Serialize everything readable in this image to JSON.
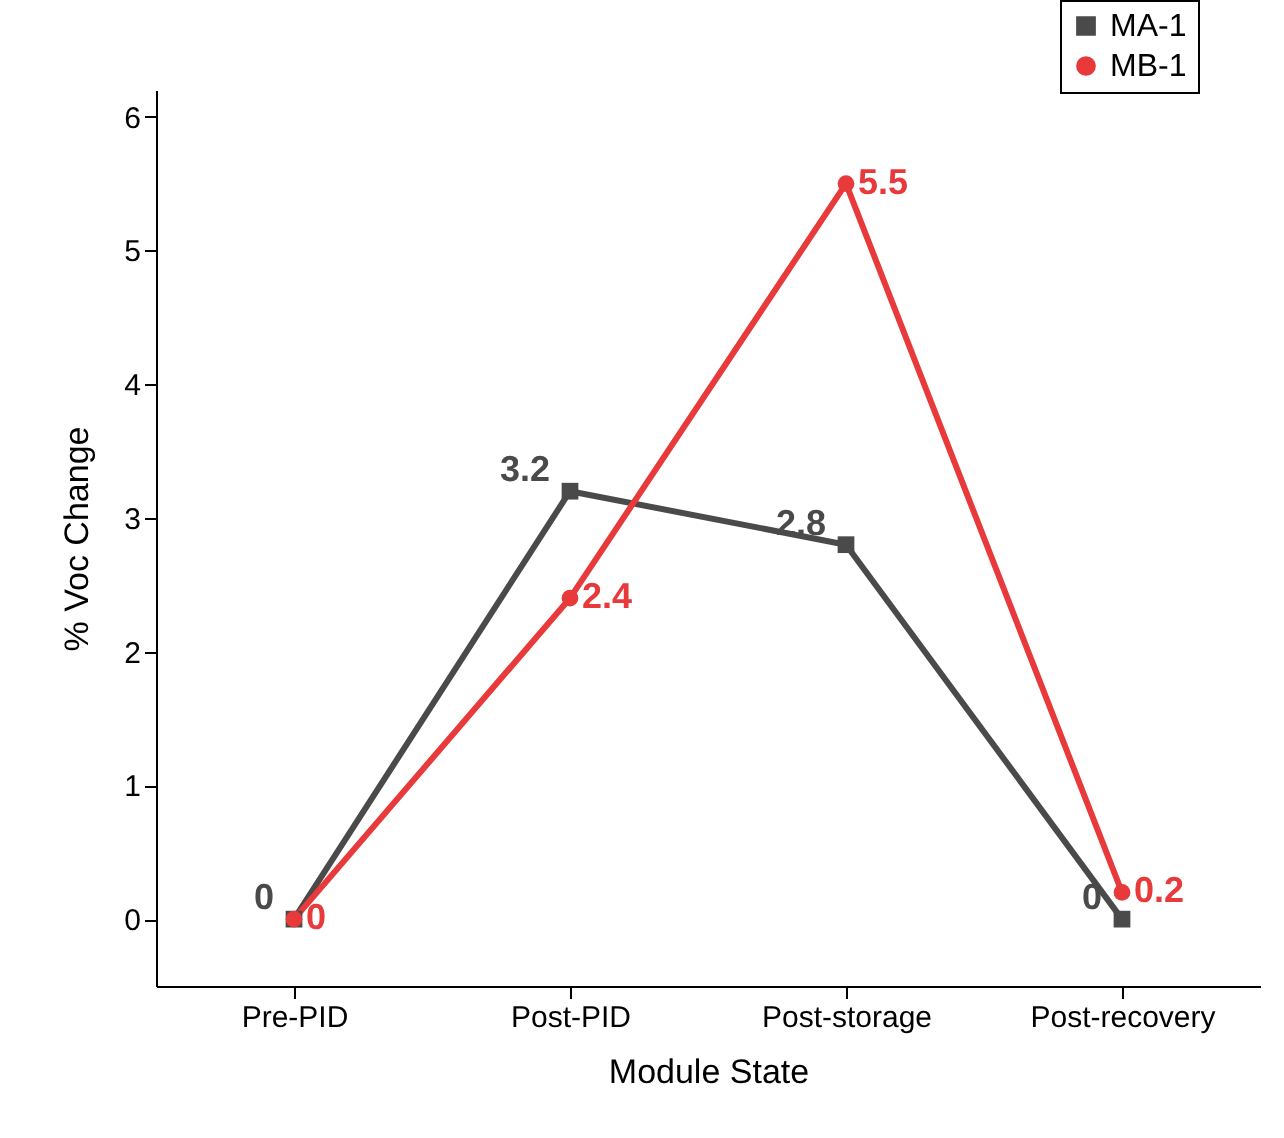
{
  "chart_data": {
    "type": "line",
    "categories": [
      "Pre-PID",
      "Post-PID",
      "Post-storage",
      "Post-recovery"
    ],
    "xlabel": "Module State",
    "ylabel": "% Voc Change",
    "series": [
      {
        "name": "MA-1",
        "color": "#4a4a4a",
        "marker": "square",
        "values": [
          0,
          3.2,
          2.8,
          0
        ],
        "value_labels": [
          "0",
          "3.2",
          "2.8",
          "0"
        ]
      },
      {
        "name": "MB-1",
        "color": "#e8393b",
        "marker": "circle",
        "values": [
          0,
          2.4,
          5.5,
          0.2
        ],
        "value_labels": [
          "0",
          "2.4",
          "5.5",
          "0.2"
        ]
      }
    ],
    "ylim": [
      -0.5,
      6.2
    ],
    "yticks": [
      0,
      1,
      2,
      3,
      4,
      5,
      6
    ],
    "grid": false,
    "legend": "top right",
    "line_style": "solid"
  }
}
